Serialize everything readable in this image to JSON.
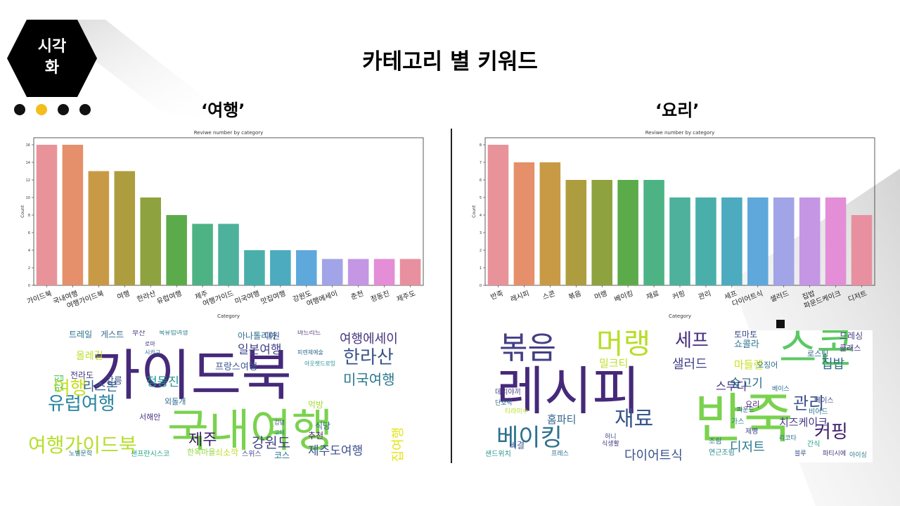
{
  "badge": {
    "line1": "시각",
    "line2": "화",
    "color": "#000000"
  },
  "nav_dots": {
    "count": 4,
    "active_index": 1,
    "active_color": "#f5bd1c"
  },
  "title": "카테고리 별 키워드",
  "left": {
    "section_title": "‘여행’",
    "chart_data": {
      "type": "bar",
      "title": "Reviwe number by category",
      "xlabel": "Category",
      "ylabel": "Count",
      "ylim": [
        0,
        16.8
      ],
      "yticks": [
        0,
        2,
        4,
        6,
        8,
        10,
        12,
        14,
        16
      ],
      "categories": [
        "가이드북",
        "국내여행",
        "여행가이드북",
        "여행",
        "한라산",
        "유럽여행",
        "제주",
        "여행가이드",
        "미국여행",
        "맛집여행",
        "강원도",
        "여행에세이",
        "춘천",
        "정동진",
        "제주도"
      ],
      "values": [
        16,
        16,
        13,
        13,
        10,
        8,
        7,
        7,
        4,
        4,
        4,
        3,
        3,
        3,
        3
      ],
      "colors": [
        "#e8939a",
        "#e5906a",
        "#c99a46",
        "#ae9d3f",
        "#8ea33f",
        "#5cab4b",
        "#4db385",
        "#4db19c",
        "#4aafaa",
        "#4cabbe",
        "#5ea8dc",
        "#a1a4e6",
        "#c596e4",
        "#e38ed7",
        "#e8909f"
      ]
    },
    "wordcloud": {
      "words": [
        {
          "text": "가이드북",
          "size": 78,
          "color": "#46297a",
          "weight": "normal"
        },
        {
          "text": "국내여행",
          "size": 64,
          "color": "#7ad24e",
          "weight": "normal"
        },
        {
          "text": "여행가이드북",
          "size": 28,
          "color": "#b6de2b",
          "weight": "normal"
        },
        {
          "text": "유럽여행",
          "size": 26,
          "color": "#27849e",
          "weight": "normal"
        },
        {
          "text": "한라산",
          "size": 26,
          "color": "#3a538b",
          "weight": "normal"
        },
        {
          "text": "여행에세이",
          "size": 18,
          "color": "#46337e",
          "weight": "normal"
        },
        {
          "text": "미국여행",
          "size": 20,
          "color": "#2a788e",
          "weight": "normal"
        },
        {
          "text": "여행",
          "size": 26,
          "color": "#c7e020",
          "weight": "normal"
        },
        {
          "text": "일본여행",
          "size": 17,
          "color": "#404387",
          "weight": "normal"
        },
        {
          "text": "리스본",
          "size": 18,
          "color": "#32648e",
          "weight": "normal"
        },
        {
          "text": "정동진",
          "size": 17,
          "color": "#1f958b",
          "weight": "normal"
        },
        {
          "text": "제주",
          "size": 22,
          "color": "#3f1f6a",
          "weight": "normal"
        },
        {
          "text": "강원도",
          "size": 20,
          "color": "#414487",
          "weight": "normal"
        },
        {
          "text": "제주도여행",
          "size": 17,
          "color": "#3b518b",
          "weight": "normal"
        },
        {
          "text": "맛집여행",
          "size": 18,
          "color": "#e5e419",
          "weight": "normal"
        },
        {
          "text": "프랑스여행",
          "size": 13,
          "color": "#39568c",
          "weight": "normal"
        },
        {
          "text": "트레일",
          "size": 12,
          "color": "#2c728e",
          "weight": "normal"
        },
        {
          "text": "게스트",
          "size": 12,
          "color": "#31688e",
          "weight": "normal"
        },
        {
          "text": "강릉",
          "size": 13,
          "color": "#3d4e8a",
          "weight": "normal"
        },
        {
          "text": "맛집",
          "size": 14,
          "color": "#5cc863",
          "weight": "normal"
        },
        {
          "text": "올레길",
          "size": 14,
          "color": "#b8de29",
          "weight": "normal"
        },
        {
          "text": "전라도",
          "size": 12,
          "color": "#453882",
          "weight": "normal"
        },
        {
          "text": "아나톨리아",
          "size": 12,
          "color": "#2d708e",
          "weight": "normal"
        },
        {
          "text": "대원",
          "size": 12,
          "color": "#3b528b",
          "weight": "normal"
        },
        {
          "text": "추천",
          "size": 12,
          "color": "#481b6d",
          "weight": "normal"
        },
        {
          "text": "코스",
          "size": 12,
          "color": "#2a768e",
          "weight": "normal"
        },
        {
          "text": "식당",
          "size": 12,
          "color": "#33638d",
          "weight": "normal"
        },
        {
          "text": "먹방",
          "size": 12,
          "color": "#a5db36",
          "weight": "normal"
        },
        {
          "text": "서해안",
          "size": 11,
          "color": "#46307e",
          "weight": "normal"
        },
        {
          "text": "한옥마을",
          "size": 11,
          "color": "#90d743",
          "weight": "normal"
        },
        {
          "text": "외돌개",
          "size": 11,
          "color": "#2e6f8e",
          "weight": "normal"
        },
        {
          "text": "샌프란시스코",
          "size": 10,
          "color": "#20a386",
          "weight": "normal"
        },
        {
          "text": "스위스",
          "size": 10,
          "color": "#3e4a89",
          "weight": "normal"
        },
        {
          "text": "쇠소깍",
          "size": 12,
          "color": "#bddf26",
          "weight": "normal"
        },
        {
          "text": "노벨문학",
          "size": 9,
          "color": "#2b748e",
          "weight": "normal"
        },
        {
          "text": "부산",
          "size": 10,
          "color": "#433e85",
          "weight": "normal"
        },
        {
          "text": "북유럽여행",
          "size": 9,
          "color": "#26818e",
          "weight": "normal"
        },
        {
          "text": "마드리드",
          "size": 9,
          "color": "#472d7b",
          "weight": "normal"
        },
        {
          "text": "피렌체예술",
          "size": 8,
          "color": "#2f6c8e",
          "weight": "normal"
        },
        {
          "text": "아웃렛드로잉",
          "size": 8,
          "color": "#21918c",
          "weight": "normal"
        },
        {
          "text": "김녕",
          "size": 8,
          "color": "#3e4989",
          "weight": "normal"
        },
        {
          "text": "고대",
          "size": 8,
          "color": "#24868e",
          "weight": "normal"
        },
        {
          "text": "로마",
          "size": 8,
          "color": "#443a83",
          "weight": "normal"
        },
        {
          "text": "시카고",
          "size": 8,
          "color": "#2e6e8e",
          "weight": "normal"
        }
      ]
    }
  },
  "right": {
    "section_title": "‘요리’",
    "chart_data": {
      "type": "bar",
      "title": "Reviwe number by category",
      "xlabel": "Category",
      "ylabel": "Count",
      "ylim": [
        0,
        8.4
      ],
      "yticks": [
        0,
        1,
        2,
        3,
        4,
        5,
        6,
        7,
        8
      ],
      "categories": [
        "반죽",
        "레시피",
        "스콘",
        "볶음",
        "머랭",
        "베이킹",
        "재료",
        "커핑",
        "관리",
        "세프",
        "다이어트식",
        "샐러드",
        "집밥",
        "파운드케이크",
        "디저트"
      ],
      "values": [
        8,
        7,
        7,
        6,
        6,
        6,
        6,
        5,
        5,
        5,
        5,
        5,
        5,
        5,
        4
      ],
      "colors": [
        "#e8939a",
        "#e5906a",
        "#c99a46",
        "#ae9d3f",
        "#8ea33f",
        "#5cab4b",
        "#4db385",
        "#4db19c",
        "#4aafaa",
        "#4cabbe",
        "#5ea8dc",
        "#a1a4e6",
        "#c596e4",
        "#e38ed7",
        "#e8909f"
      ]
    },
    "wordcloud": {
      "words": [
        {
          "text": "레시피",
          "size": 74,
          "color": "#46297a",
          "weight": "normal"
        },
        {
          "text": "반죽",
          "size": 76,
          "color": "#7ad24e",
          "weight": "normal"
        },
        {
          "text": "스콘",
          "size": 58,
          "color": "#5cc863",
          "weight": "normal"
        },
        {
          "text": "볶음",
          "size": 44,
          "color": "#433e85",
          "weight": "normal"
        },
        {
          "text": "머랭",
          "size": 42,
          "color": "#b8de29",
          "weight": "normal"
        },
        {
          "text": "베이킹",
          "size": 34,
          "color": "#2d708e",
          "weight": "normal"
        },
        {
          "text": "재료",
          "size": 30,
          "color": "#39568c",
          "weight": "normal"
        },
        {
          "text": "커핑",
          "size": 26,
          "color": "#3f1f6a",
          "weight": "normal"
        },
        {
          "text": "관리",
          "size": 24,
          "color": "#3b528b",
          "weight": "normal"
        },
        {
          "text": "세프",
          "size": 26,
          "color": "#472d7b",
          "weight": "normal"
        },
        {
          "text": "샐러드",
          "size": 18,
          "color": "#404387",
          "weight": "normal"
        },
        {
          "text": "집밥",
          "size": 18,
          "color": "#31688e",
          "weight": "normal"
        },
        {
          "text": "디저트",
          "size": 18,
          "color": "#2a788e",
          "weight": "normal"
        },
        {
          "text": "다이어트식",
          "size": 18,
          "color": "#3a538b",
          "weight": "normal"
        },
        {
          "text": "치즈케이크",
          "size": 15,
          "color": "#453882",
          "weight": "normal"
        },
        {
          "text": "숲고기",
          "size": 17,
          "color": "#2c728e",
          "weight": "normal"
        },
        {
          "text": "스무디",
          "size": 16,
          "color": "#46337e",
          "weight": "normal"
        },
        {
          "text": "마들렌",
          "size": 15,
          "color": "#c7e020",
          "weight": "normal"
        },
        {
          "text": "밀크티",
          "size": 15,
          "color": "#bddf26",
          "weight": "normal"
        },
        {
          "text": "홈파티",
          "size": 15,
          "color": "#32648e",
          "weight": "normal"
        },
        {
          "text": "쇼콜라",
          "size": 13,
          "color": "#2a768e",
          "weight": "normal"
        },
        {
          "text": "토마토",
          "size": 12,
          "color": "#3e4a89",
          "weight": "normal"
        },
        {
          "text": "드레싱",
          "size": 12,
          "color": "#443a83",
          "weight": "normal"
        },
        {
          "text": "클래스",
          "size": 11,
          "color": "#46307e",
          "weight": "normal"
        },
        {
          "text": "로스팅",
          "size": 11,
          "color": "#33638d",
          "weight": "normal"
        },
        {
          "text": "오징어",
          "size": 11,
          "color": "#2e6f8e",
          "weight": "normal"
        },
        {
          "text": "요리",
          "size": 11,
          "color": "#481b6d",
          "weight": "normal"
        },
        {
          "text": "비어드",
          "size": 10,
          "color": "#2b748e",
          "weight": "normal"
        },
        {
          "text": "베이스",
          "size": 10,
          "color": "#3d4e8a",
          "weight": "normal"
        },
        {
          "text": "가스",
          "size": 10,
          "color": "#26818e",
          "weight": "normal"
        },
        {
          "text": "간식",
          "size": 10,
          "color": "#20a386",
          "weight": "normal"
        },
        {
          "text": "제빵",
          "size": 10,
          "color": "#3e4989",
          "weight": "normal"
        },
        {
          "text": "조림",
          "size": 10,
          "color": "#2f6c8e",
          "weight": "normal"
        },
        {
          "text": "연근조림",
          "size": 10,
          "color": "#24868e",
          "weight": "normal"
        },
        {
          "text": "샌드위치",
          "size": 10,
          "color": "#21918c",
          "weight": "normal"
        },
        {
          "text": "프레스",
          "size": 9,
          "color": "#2e6e8e",
          "weight": "normal"
        },
        {
          "text": "식생활",
          "size": 9,
          "color": "#443a83",
          "weight": "normal"
        },
        {
          "text": "블루",
          "size": 9,
          "color": "#3b518b",
          "weight": "normal"
        },
        {
          "text": "파티시에",
          "size": 9,
          "color": "#46337e",
          "weight": "normal"
        },
        {
          "text": "아이싱",
          "size": 9,
          "color": "#2a788e",
          "weight": "normal"
        },
        {
          "text": "데리야끼",
          "size": 10,
          "color": "#433e85",
          "weight": "normal"
        },
        {
          "text": "단호박",
          "size": 9,
          "color": "#31688e",
          "weight": "normal"
        },
        {
          "text": "티라미수",
          "size": 9,
          "color": "#b6de2b",
          "weight": "normal"
        },
        {
          "text": "비결",
          "size": 12,
          "color": "#3a538b",
          "weight": "normal"
        },
        {
          "text": "허니",
          "size": 9,
          "color": "#3e4a89",
          "weight": "normal"
        },
        {
          "text": "리코타",
          "size": 9,
          "color": "#2c728e",
          "weight": "normal"
        },
        {
          "text": "파운드",
          "size": 9,
          "color": "#32648e",
          "weight": "normal"
        },
        {
          "text": "베이스",
          "size": 9,
          "color": "#2d708e",
          "weight": "normal"
        }
      ]
    }
  }
}
